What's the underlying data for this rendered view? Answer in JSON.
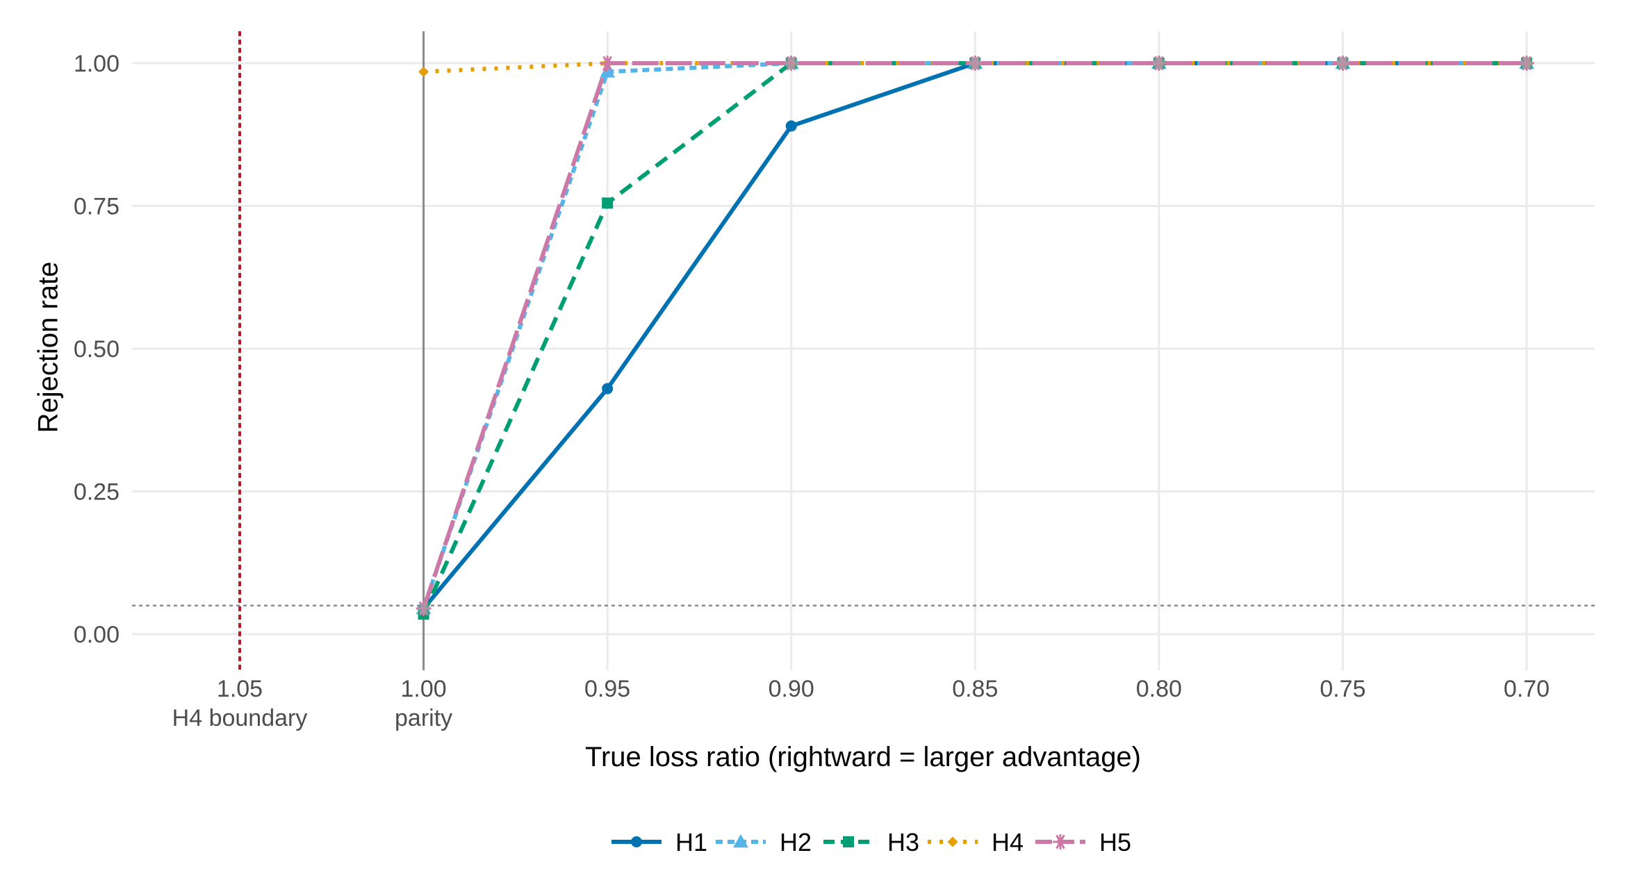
{
  "chart_data": {
    "type": "line",
    "xlabel": "True loss ratio (rightward = larger advantage)",
    "ylabel": "Rejection rate",
    "x_reversed": true,
    "xlim": [
      1.075,
      0.68
    ],
    "ylim": [
      -0.05,
      1.05
    ],
    "x_ticks": [
      {
        "value": 1.05,
        "label": "1.05",
        "sublabel": "H4 boundary"
      },
      {
        "value": 1.0,
        "label": "1.00",
        "sublabel": "parity"
      },
      {
        "value": 0.95,
        "label": "0.95",
        "sublabel": ""
      },
      {
        "value": 0.9,
        "label": "0.90",
        "sublabel": ""
      },
      {
        "value": 0.85,
        "label": "0.85",
        "sublabel": ""
      },
      {
        "value": 0.8,
        "label": "0.80",
        "sublabel": ""
      },
      {
        "value": 0.75,
        "label": "0.75",
        "sublabel": ""
      },
      {
        "value": 0.7,
        "label": "0.70",
        "sublabel": ""
      }
    ],
    "y_ticks": [
      {
        "value": 0.0,
        "label": "0.00"
      },
      {
        "value": 0.25,
        "label": "0.25"
      },
      {
        "value": 0.5,
        "label": "0.50"
      },
      {
        "value": 0.75,
        "label": "0.75"
      },
      {
        "value": 1.0,
        "label": "1.00"
      }
    ],
    "reference_lines": [
      {
        "axis": "x",
        "value": 1.05,
        "color": "#c0182b",
        "style": "dotted"
      },
      {
        "axis": "x",
        "value": 1.0,
        "color": "#8a8a8a",
        "style": "solid"
      },
      {
        "axis": "y",
        "value": 0.05,
        "color": "#8a8a8a",
        "style": "dotted"
      }
    ],
    "grid": true,
    "legend_position": "bottom",
    "series": [
      {
        "name": "H1",
        "color": "#0072B2",
        "dash": "solid",
        "marker": "circle",
        "x": [
          1.0,
          0.95,
          0.9,
          0.85,
          0.8,
          0.75,
          0.7
        ],
        "y": [
          0.045,
          0.43,
          0.89,
          1.0,
          1.0,
          1.0,
          1.0
        ]
      },
      {
        "name": "H2",
        "color": "#56B4E9",
        "dash": "short-dash",
        "marker": "triangle",
        "x": [
          1.0,
          0.95,
          0.9,
          0.85,
          0.8,
          0.75,
          0.7
        ],
        "y": [
          0.045,
          0.985,
          1.0,
          1.0,
          1.0,
          1.0,
          1.0
        ]
      },
      {
        "name": "H3",
        "color": "#009E73",
        "dash": "dash",
        "marker": "square",
        "x": [
          1.0,
          0.95,
          0.9,
          0.85,
          0.8,
          0.75,
          0.7
        ],
        "y": [
          0.035,
          0.755,
          1.0,
          1.0,
          1.0,
          1.0,
          1.0
        ]
      },
      {
        "name": "H4",
        "color": "#E69F00",
        "dash": "dotted",
        "marker": "diamond",
        "x": [
          1.0,
          0.95,
          0.9,
          0.85,
          0.8,
          0.75,
          0.7
        ],
        "y": [
          0.985,
          1.0,
          1.0,
          1.0,
          1.0,
          1.0,
          1.0
        ]
      },
      {
        "name": "H5",
        "color": "#CC79A7",
        "dash": "long-dash",
        "marker": "asterisk",
        "x": [
          1.0,
          0.95,
          0.9,
          0.85,
          0.8,
          0.75,
          0.7
        ],
        "y": [
          0.045,
          1.0,
          1.0,
          1.0,
          1.0,
          1.0,
          1.0
        ]
      }
    ]
  }
}
